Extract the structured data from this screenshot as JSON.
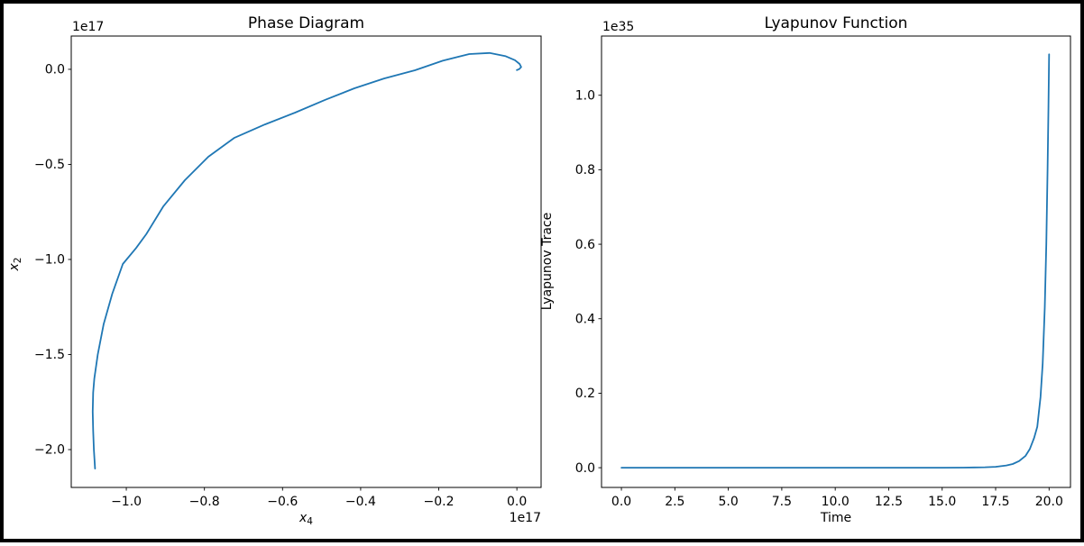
{
  "figure": {
    "background": "#ffffff",
    "border_color": "#000000"
  },
  "chart_data": [
    {
      "type": "line",
      "title": "Phase Diagram",
      "xlabel_main": "x",
      "xlabel_sub": "4",
      "ylabel_main": "x",
      "ylabel_sub": "2",
      "x_offset_text": "1e17",
      "y_offset_text": "1e17",
      "x_scale_note": "values in units of 1e17",
      "y_scale_note": "values in units of 1e17",
      "xlim": [
        -1.141,
        0.062
      ],
      "ylim": [
        -2.199,
        0.175
      ],
      "grid": false,
      "legend": false,
      "line_color": "#1f77b4",
      "xticks": [
        {
          "v": -1.0,
          "label": "−1.0"
        },
        {
          "v": -0.8,
          "label": "−0.8"
        },
        {
          "v": -0.6,
          "label": "−0.6"
        },
        {
          "v": -0.4,
          "label": "−0.4"
        },
        {
          "v": -0.2,
          "label": "−0.2"
        },
        {
          "v": 0.0,
          "label": "0.0"
        }
      ],
      "yticks": [
        {
          "v": 0.0,
          "label": "0.0"
        },
        {
          "v": -0.5,
          "label": "−0.5"
        },
        {
          "v": -1.0,
          "label": "−1.0"
        },
        {
          "v": -1.5,
          "label": "−1.5"
        },
        {
          "v": -2.0,
          "label": "−2.0"
        }
      ],
      "series": [
        {
          "name": "phase-trajectory",
          "x": [
            -1.08,
            -1.083,
            -1.085,
            -1.086,
            -1.085,
            -1.082,
            -1.073,
            -1.058,
            -1.036,
            -1.009,
            -0.975,
            -0.949,
            -0.905,
            -0.85,
            -0.79,
            -0.723,
            -0.645,
            -0.568,
            -0.49,
            -0.416,
            -0.34,
            -0.261,
            -0.19,
            -0.122,
            -0.07,
            -0.03,
            -0.005,
            0.007,
            0.011,
            0.006,
            0.0
          ],
          "y": [
            -2.1,
            -2.0,
            -1.9,
            -1.8,
            -1.7,
            -1.626,
            -1.5,
            -1.341,
            -1.18,
            -1.024,
            -0.94,
            -0.867,
            -0.72,
            -0.583,
            -0.46,
            -0.36,
            -0.29,
            -0.228,
            -0.16,
            -0.1,
            -0.048,
            -0.005,
            0.045,
            0.08,
            0.086,
            0.07,
            0.048,
            0.028,
            0.012,
            0.001,
            -0.004
          ]
        }
      ]
    },
    {
      "type": "line",
      "title": "Lyapunov Function",
      "xlabel": "Time",
      "ylabel": "Lyapunov Trace",
      "y_offset_text": "1e35",
      "y_scale_note": "values in units of 1e35",
      "xlim": [
        -0.93,
        21.0
      ],
      "ylim": [
        -0.053,
        1.159
      ],
      "grid": false,
      "legend": false,
      "line_color": "#1f77b4",
      "xticks": [
        {
          "v": 0.0,
          "label": "0.0"
        },
        {
          "v": 2.5,
          "label": "2.5"
        },
        {
          "v": 5.0,
          "label": "5.0"
        },
        {
          "v": 7.5,
          "label": "7.5"
        },
        {
          "v": 10.0,
          "label": "10.0"
        },
        {
          "v": 12.5,
          "label": "12.5"
        },
        {
          "v": 15.0,
          "label": "15.0"
        },
        {
          "v": 17.5,
          "label": "17.5"
        },
        {
          "v": 20.0,
          "label": "20.0"
        }
      ],
      "yticks": [
        {
          "v": 0.0,
          "label": "0.0"
        },
        {
          "v": 0.2,
          "label": "0.2"
        },
        {
          "v": 0.4,
          "label": "0.4"
        },
        {
          "v": 0.6,
          "label": "0.6"
        },
        {
          "v": 0.8,
          "label": "0.8"
        },
        {
          "v": 1.0,
          "label": "1.0"
        }
      ],
      "series": [
        {
          "name": "lyapunov-trace",
          "x": [
            0,
            1,
            2,
            3,
            4,
            5,
            6,
            7,
            8,
            9,
            10,
            11,
            12,
            13,
            14,
            15,
            16,
            16.5,
            17,
            17.5,
            18,
            18.3,
            18.6,
            18.9,
            19.1,
            19.3,
            19.45,
            19.6,
            19.7,
            19.8,
            19.87,
            19.93,
            19.97,
            20.0
          ],
          "y": [
            0,
            0,
            0,
            0,
            0,
            0,
            0,
            0,
            0,
            0,
            0,
            0,
            0,
            0,
            0,
            0,
            0.0003,
            0.0006,
            0.0012,
            0.0025,
            0.006,
            0.01,
            0.018,
            0.032,
            0.05,
            0.08,
            0.11,
            0.19,
            0.28,
            0.43,
            0.6,
            0.8,
            0.97,
            1.11
          ]
        }
      ]
    }
  ]
}
